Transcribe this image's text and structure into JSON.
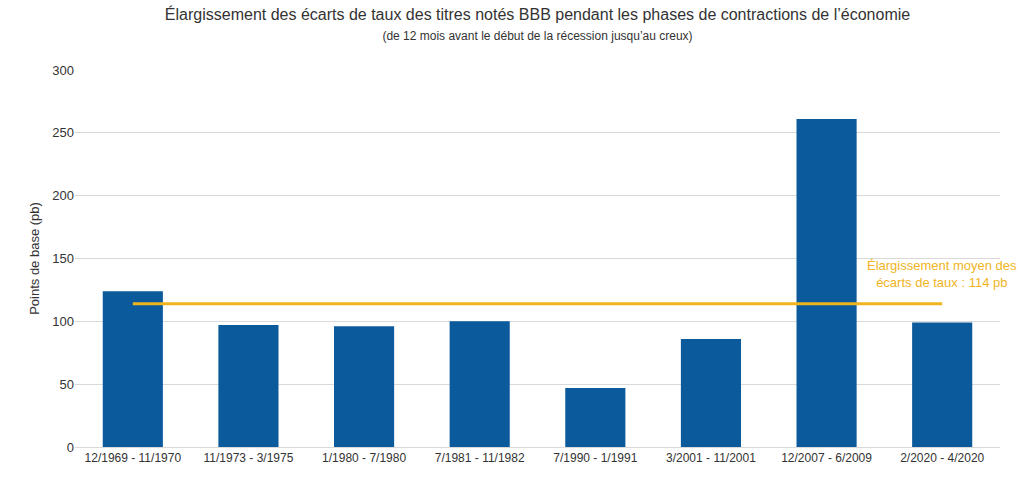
{
  "chart_data": {
    "type": "bar",
    "title": "Élargissement des écarts de taux des titres notés BBB pendant les phases de contractions de l’économie",
    "subtitle": "(de 12 mois avant le début de la récession jusqu’au creux)",
    "y_label": "Points de base (pb)",
    "categories": [
      "12/1969 - 11/1970",
      "11/1973 - 3/1975",
      "1/1980 - 7/1980",
      "7/1981 - 11/1982",
      "7/1990 - 1/1991",
      "3/2001 - 11/2001",
      "12/2007 - 6/2009",
      "2/2020 - 4/2020"
    ],
    "values": [
      124,
      97,
      96,
      100,
      47,
      86,
      261,
      99
    ],
    "color": "#0b5a9c",
    "ylim": [
      0,
      300
    ],
    "yticks": [
      0,
      50,
      100,
      150,
      200,
      250,
      300
    ],
    "grid": true,
    "average_line": {
      "value": 114,
      "label_lines": [
        "Élargissement moyen des",
        "écarts de taux : 114 pb"
      ],
      "color": "#f0b41e"
    }
  }
}
